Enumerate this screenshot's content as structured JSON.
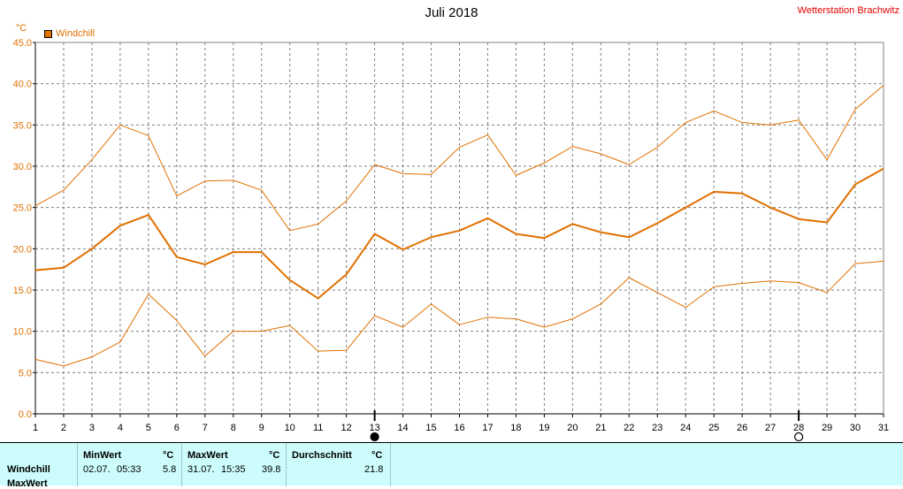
{
  "title": "Juli 2018",
  "station": "Wetterstation Brachwitz",
  "colors": {
    "series": "#e07000",
    "grid": "#808080",
    "station": "#e00000",
    "panel": "#ccfcfc"
  },
  "chart_data": {
    "type": "line",
    "unit": "°C",
    "legend": [
      "Windchill"
    ],
    "legend_placement": "top-left",
    "grid": true,
    "xlim": [
      1,
      31
    ],
    "ylim": [
      0,
      45
    ],
    "x": [
      1,
      2,
      3,
      4,
      5,
      6,
      7,
      8,
      9,
      10,
      11,
      12,
      13,
      14,
      15,
      16,
      17,
      18,
      19,
      20,
      21,
      22,
      23,
      24,
      25,
      26,
      27,
      28,
      29,
      30,
      31
    ],
    "x_tick_labels": [
      "1",
      "2",
      "3",
      "4",
      "5",
      "6",
      "7",
      "8",
      "9",
      "10",
      "11",
      "12",
      "13",
      "14",
      "15",
      "16",
      "17",
      "18",
      "19",
      "20",
      "21",
      "22",
      "23",
      "24",
      "25",
      "26",
      "27",
      "28",
      "29",
      "30",
      "31"
    ],
    "y_ticks": [
      0,
      5,
      10,
      15,
      20,
      25,
      30,
      35,
      40,
      45
    ],
    "y_tick_labels": [
      "0.0",
      "5.0",
      "10.0",
      "15.0",
      "20.0",
      "25.0",
      "30.0",
      "35.0",
      "40.0",
      "45.0"
    ],
    "series": [
      {
        "name": "Windchill",
        "role": "max",
        "stroke": 1,
        "values": [
          25.2,
          27.1,
          30.8,
          35.0,
          33.7,
          26.4,
          28.2,
          28.3,
          27.1,
          22.2,
          23.0,
          25.8,
          30.2,
          29.1,
          29.0,
          32.3,
          33.8,
          28.9,
          30.4,
          32.4,
          31.5,
          30.2,
          32.3,
          35.3,
          36.7,
          35.3,
          35.0,
          35.6,
          30.8,
          36.9,
          39.8
        ]
      },
      {
        "name": "Windchill",
        "role": "avg",
        "stroke": 2,
        "values": [
          17.4,
          17.7,
          20.0,
          22.8,
          24.1,
          19.0,
          18.1,
          19.6,
          19.6,
          16.2,
          14.0,
          16.9,
          21.8,
          19.9,
          21.4,
          22.2,
          23.7,
          21.8,
          21.3,
          23.0,
          22.0,
          21.4,
          23.1,
          25.0,
          26.9,
          26.7,
          25.0,
          23.6,
          23.2,
          27.8,
          29.7
        ]
      },
      {
        "name": "Windchill",
        "role": "min",
        "stroke": 1,
        "values": [
          6.6,
          5.8,
          6.9,
          8.7,
          14.5,
          11.3,
          7.0,
          10.0,
          10.0,
          10.7,
          7.6,
          7.7,
          11.9,
          10.5,
          13.3,
          10.8,
          11.7,
          11.5,
          10.5,
          11.5,
          13.3,
          16.5,
          14.7,
          12.9,
          15.4,
          15.8,
          16.1,
          15.9,
          14.7,
          18.2,
          18.5
        ]
      }
    ],
    "moon_phases": [
      {
        "day": 13,
        "phase": "new"
      },
      {
        "day": 28,
        "phase": "full"
      }
    ]
  },
  "summary": {
    "row_label": "Windchill",
    "row_label2": "MaxWert",
    "min": {
      "header": "MinWert",
      "unit": "°C",
      "date": "02.07.",
      "time": "05:33",
      "value": "5.8"
    },
    "max": {
      "header": "MaxWert",
      "unit": "°C",
      "date": "31.07.",
      "time": "15:35",
      "value": "39.8"
    },
    "avg": {
      "header": "Durchschnitt",
      "unit": "°C",
      "value": "21.8"
    }
  }
}
